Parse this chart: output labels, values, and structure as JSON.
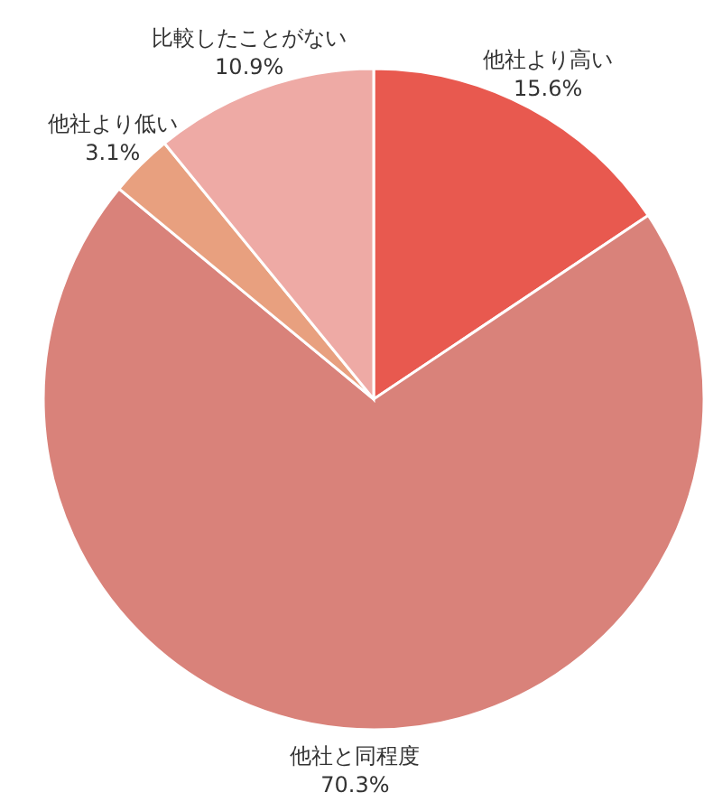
{
  "chart_data": {
    "type": "pie",
    "categories": [
      "他社より高い",
      "他社と同程度",
      "他社より低い",
      "比較したことがない"
    ],
    "values": [
      15.6,
      70.3,
      3.1,
      10.9
    ],
    "value_labels": [
      "15.6%",
      "70.3%",
      "3.1%",
      "10.9%"
    ],
    "colors": [
      "#e8594f",
      "#d9827a",
      "#e8a07f",
      "#eeaaa5"
    ]
  }
}
